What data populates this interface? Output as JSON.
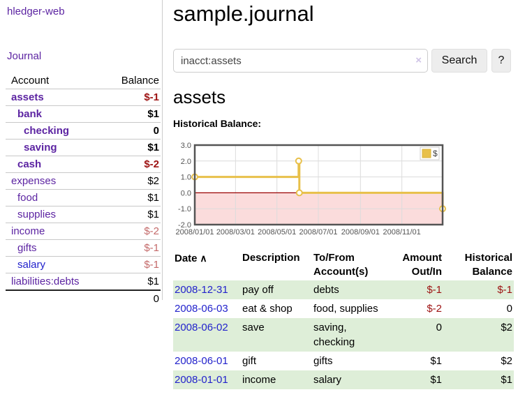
{
  "app": {
    "brand": "hledger-web",
    "nav": {
      "journal": "Journal"
    }
  },
  "sidebar": {
    "header": {
      "account": "Account",
      "balance": "Balance"
    },
    "accounts": [
      {
        "name": "assets",
        "level": 1,
        "balance": "$-1",
        "bold": true,
        "link_style": "visited"
      },
      {
        "name": "bank",
        "level": 2,
        "balance": "$1",
        "bold": true,
        "link_style": "visited"
      },
      {
        "name": "checking",
        "level": 3,
        "balance": "0",
        "bold": true,
        "link_style": "visited"
      },
      {
        "name": "saving",
        "level": 3,
        "balance": "$1",
        "bold": true,
        "link_style": "visited"
      },
      {
        "name": "cash",
        "level": 2,
        "balance": "$-2",
        "bold": true,
        "link_style": "visited"
      },
      {
        "name": "expenses",
        "level": 1,
        "balance": "$2",
        "bold": false,
        "link_style": "visited"
      },
      {
        "name": "food",
        "level": 2,
        "balance": "$1",
        "bold": false,
        "link_style": "visited"
      },
      {
        "name": "supplies",
        "level": 2,
        "balance": "$1",
        "bold": false,
        "link_style": "visited"
      },
      {
        "name": "income",
        "level": 1,
        "balance": "$-2",
        "bold": false,
        "link_style": "visited"
      },
      {
        "name": "gifts",
        "level": 2,
        "balance": "$-1",
        "bold": false,
        "link_style": "visited"
      },
      {
        "name": "salary",
        "level": 2,
        "balance": "$-1",
        "bold": false,
        "link_style": "unvisited"
      },
      {
        "name": "liabilities:debts",
        "level": 1,
        "balance": "$1",
        "bold": false,
        "link_style": "visited"
      }
    ],
    "total": "0"
  },
  "header": {
    "title": "sample.journal"
  },
  "search": {
    "value": "inacct:assets",
    "clear_icon": "×",
    "search_label": "Search",
    "help_label": "?"
  },
  "account_page": {
    "title": "assets",
    "chart_label": "Historical Balance:"
  },
  "chart_data": {
    "type": "line",
    "style": "steps",
    "title": "Historical Balance:",
    "series": [
      {
        "name": "$",
        "color": "#e8c04a",
        "points": [
          [
            "2008-01-01",
            1
          ],
          [
            "2008-06-02",
            2
          ],
          [
            "2008-06-03",
            0
          ],
          [
            "2008-12-31",
            -1
          ]
        ]
      }
    ],
    "x_range": [
      "2008-01-01",
      "2008-12-31"
    ],
    "ylim": [
      -2,
      3
    ],
    "yticks": [
      "3.0",
      "2.0",
      "1.0",
      "0.0",
      "-1.0",
      "-2.0"
    ],
    "xticks": [
      "2008/01/01",
      "2008/03/01",
      "2008/05/01",
      "2008/07/01",
      "2008/09/01",
      "2008/11/01"
    ],
    "legend": {
      "label": "$",
      "position": "top-right"
    },
    "grid": true,
    "colors": {
      "grid": "#dcdcdc",
      "border": "#545454",
      "tick_text": "#545454",
      "zero_line": "#990000",
      "negative_fill": "#fbdcdc",
      "marker_fill": "#ffffff"
    }
  },
  "register": {
    "sort_icon": "∧",
    "columns": [
      {
        "lines": [
          "Date"
        ],
        "align": "left",
        "sorted": true
      },
      {
        "lines": [
          "Description"
        ],
        "align": "left"
      },
      {
        "lines": [
          "To/From",
          "Account(s)"
        ],
        "align": "left"
      },
      {
        "lines": [
          "Amount",
          "Out/In"
        ],
        "align": "right"
      },
      {
        "lines": [
          "Historical",
          "Balance"
        ],
        "align": "right"
      }
    ],
    "rows": [
      {
        "date": "2008-12-31",
        "description": "pay off",
        "accounts": "debts",
        "amount": "$-1",
        "balance": "$-1"
      },
      {
        "date": "2008-06-03",
        "description": "eat & shop",
        "accounts": "food, supplies",
        "amount": "$-2",
        "balance": "0"
      },
      {
        "date": "2008-06-02",
        "description": "save",
        "accounts": "saving, checking",
        "amount": "0",
        "balance": "$2"
      },
      {
        "date": "2008-06-01",
        "description": "gift",
        "accounts": "gifts",
        "amount": "$1",
        "balance": "$2"
      },
      {
        "date": "2008-01-01",
        "description": "income",
        "accounts": "salary",
        "amount": "$1",
        "balance": "$1"
      }
    ]
  }
}
